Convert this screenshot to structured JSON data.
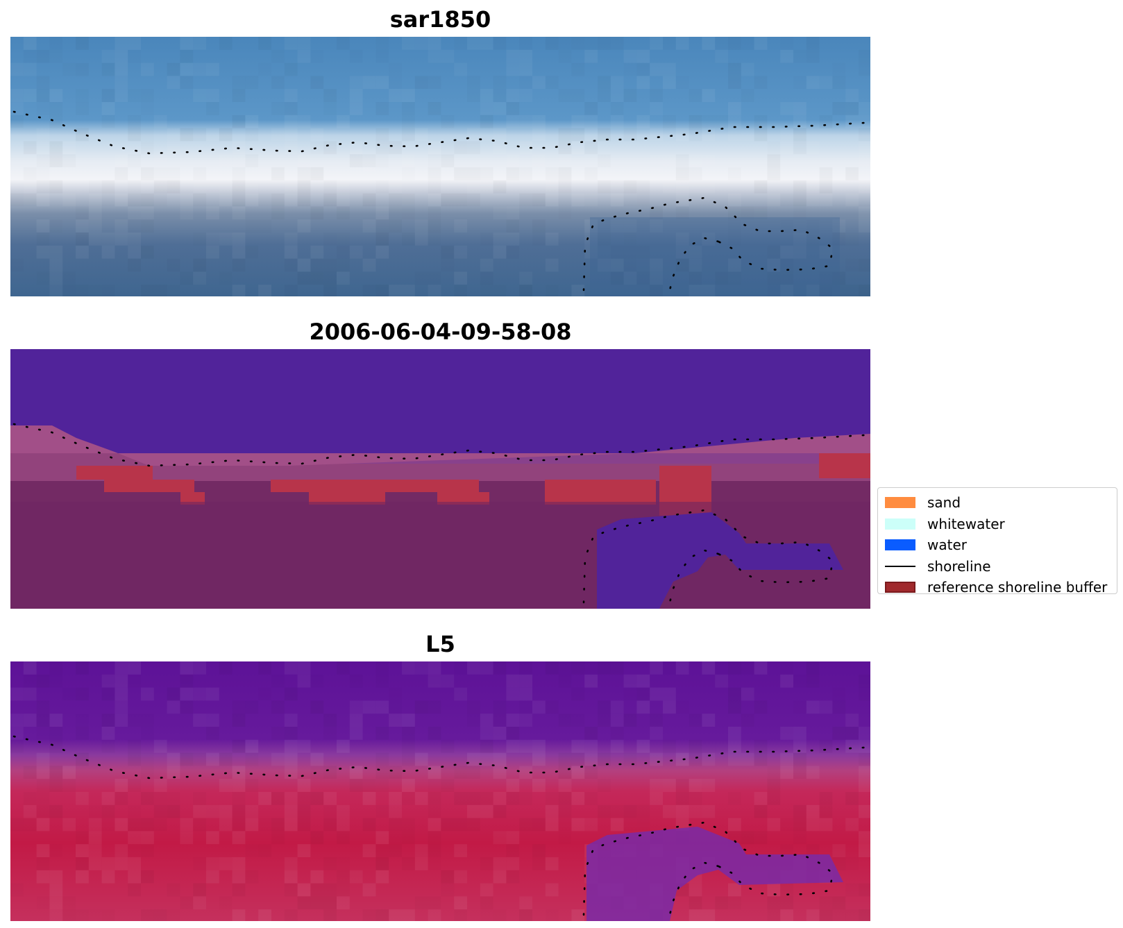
{
  "panels": [
    {
      "id": "sar",
      "title": "sar1850"
    },
    {
      "id": "classified",
      "title": "2006-06-04-09-58-08"
    },
    {
      "id": "index",
      "title": "L5"
    }
  ],
  "legend": {
    "items": [
      {
        "label": "sand",
        "color": "#ff8c3f",
        "kind": "patch"
      },
      {
        "label": "whitewater",
        "color": "#ccfff9",
        "kind": "patch"
      },
      {
        "label": "water",
        "color": "#0a5cff",
        "kind": "patch"
      },
      {
        "label": "shoreline",
        "color": "#000000",
        "kind": "line"
      },
      {
        "label": "reference shoreline buffer",
        "color": "#a0292c",
        "kind": "patch-outlined"
      }
    ]
  },
  "colors": {
    "sar_ocean": "#4f8ec2",
    "sar_whitewater": "#eef0f4",
    "sar_land": "#3f6690",
    "class_water": "#51239a",
    "class_land": "#732a64",
    "class_buffer": "#b8344a",
    "index_water": "#5d1297",
    "index_land": "#c21a46",
    "shoreline_dots": "#000000"
  }
}
